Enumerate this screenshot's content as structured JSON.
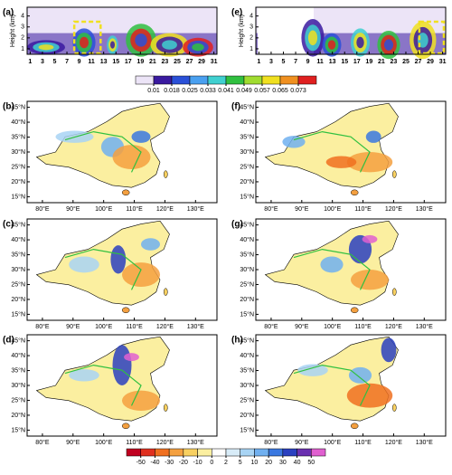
{
  "height_panels": [
    {
      "label": "(a)"
    },
    {
      "label": "(e)"
    }
  ],
  "height_axis": {
    "label": "Height (km)",
    "ylim": [
      0.5,
      4.8
    ],
    "yticks": [
      1,
      2,
      3,
      4
    ],
    "xlim": [
      0.5,
      31.5
    ],
    "xticks": [
      1,
      3,
      5,
      7,
      9,
      11,
      13,
      15,
      17,
      19,
      21,
      23,
      25,
      27,
      29,
      31
    ]
  },
  "colorbar_top": {
    "levels": [
      0.01,
      0.018,
      0.025,
      0.033,
      0.041,
      0.049,
      0.057,
      0.065,
      0.073
    ],
    "colors": [
      "#ece4f7",
      "#3a1aa0",
      "#2a50d8",
      "#4aa0f0",
      "#40d0d0",
      "#30c040",
      "#a0dc30",
      "#f0e020",
      "#f09020",
      "#e02020"
    ]
  },
  "map_panels": [
    {
      "label": "(b)"
    },
    {
      "label": "(f)"
    },
    {
      "label": "(c)"
    },
    {
      "label": "(g)"
    },
    {
      "label": "(d)"
    },
    {
      "label": "(h)"
    }
  ],
  "map_axis": {
    "lat_lim": [
      13,
      47
    ],
    "lon_lim": [
      75,
      137
    ],
    "lat_ticks": [
      {
        "value": 15,
        "label": "15°N"
      },
      {
        "value": 20,
        "label": "20°N"
      },
      {
        "value": 25,
        "label": "25°N"
      },
      {
        "value": 30,
        "label": "30°N"
      },
      {
        "value": 35,
        "label": "35°N"
      },
      {
        "value": 40,
        "label": "40°N"
      },
      {
        "value": 45,
        "label": "45°N"
      }
    ],
    "lon_ticks": [
      {
        "value": 80,
        "label": "80°E"
      },
      {
        "value": 90,
        "label": "90°E"
      },
      {
        "value": 100,
        "label": "100°E"
      },
      {
        "value": 110,
        "label": "110°E"
      },
      {
        "value": 120,
        "label": "120°E"
      },
      {
        "value": 130,
        "label": "130°E"
      }
    ]
  },
  "colorbar_bottom": {
    "levels": [
      -50,
      -40,
      -30,
      -20,
      -10,
      0,
      2,
      5,
      10,
      20,
      30,
      40,
      50
    ],
    "colors": [
      "#c00020",
      "#e03020",
      "#f07020",
      "#f4a040",
      "#f8d060",
      "#fbefa0",
      "#ffffff",
      "#d8ecf8",
      "#a8d4f4",
      "#70b0f0",
      "#3a78e0",
      "#2a40c0",
      "#6a30b0",
      "#e060d0"
    ]
  }
}
